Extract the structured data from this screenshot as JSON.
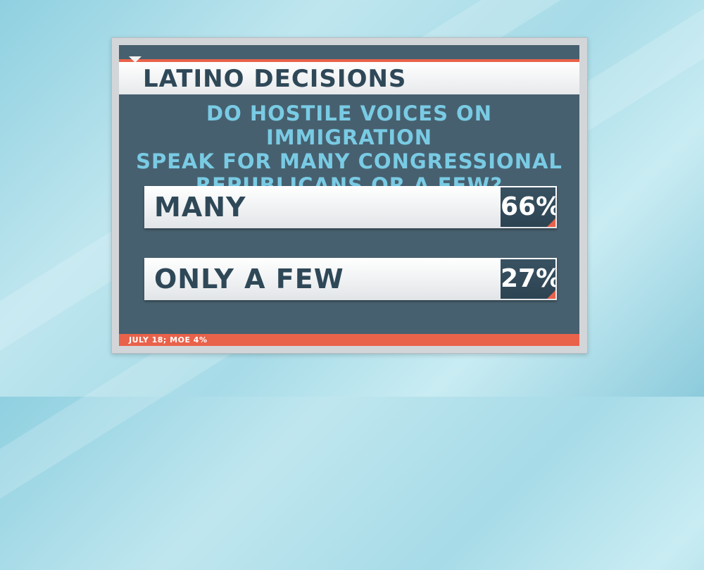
{
  "header": {
    "title": "LATINO DECISIONS"
  },
  "question": {
    "line1": "DO HOSTILE VOICES ON IMMIGRATION",
    "line2": "SPEAK FOR MANY CONGRESSIONAL",
    "line3": "REPUBLICANS OR A FEW?"
  },
  "answers": [
    {
      "label": "MANY",
      "percent": "66%"
    },
    {
      "label": "ONLY A FEW",
      "percent": "27%"
    }
  ],
  "footer": {
    "text": "JULY 18; MOE 4%"
  },
  "colors": {
    "panel": "#47606f",
    "accent": "#e9624a",
    "question_text": "#79cbe4",
    "label_text": "#2f4858"
  }
}
